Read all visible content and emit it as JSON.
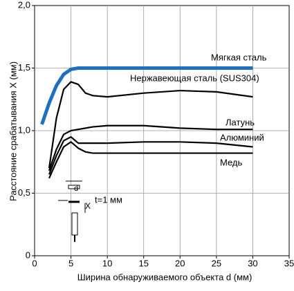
{
  "chart_data": {
    "type": "line",
    "x_label": "Ширина обнаруживаемого объекта d (мм)",
    "y_label": "Расстояние срабатывания X (мм)",
    "x": [
      1,
      2,
      3,
      4,
      5,
      6,
      7,
      8,
      10,
      15,
      20,
      25,
      30
    ],
    "series": [
      {
        "name": "Мягкая сталь",
        "color": "#1f6fc0",
        "values": [
          1.05,
          1.22,
          1.36,
          1.45,
          1.49,
          1.5,
          1.5,
          1.5,
          1.5,
          1.5,
          1.5,
          1.5,
          1.5
        ]
      },
      {
        "name": "Нержавеющая сталь (SUS304)",
        "color": "#000000",
        "values": [
          null,
          0.7,
          1.1,
          1.33,
          1.39,
          1.37,
          1.3,
          1.28,
          1.27,
          1.3,
          1.32,
          1.31,
          1.27
        ]
      },
      {
        "name": "Латунь",
        "color": "#000000",
        "values": [
          null,
          0.68,
          0.85,
          0.97,
          1.0,
          1.01,
          1.02,
          1.03,
          1.04,
          1.04,
          1.02,
          1.01,
          1.01
        ]
      },
      {
        "name": "Алюминий",
        "color": "#000000",
        "values": [
          null,
          0.65,
          0.8,
          0.92,
          0.95,
          0.9,
          0.9,
          0.9,
          0.9,
          0.91,
          0.91,
          0.9,
          0.87
        ]
      },
      {
        "name": "Медь",
        "color": "#000000",
        "values": [
          null,
          0.62,
          0.75,
          0.87,
          0.91,
          0.86,
          0.83,
          0.82,
          0.82,
          0.82,
          0.82,
          0.82,
          0.82
        ]
      }
    ],
    "xlim": [
      0,
      35
    ],
    "xticks": [
      0,
      5,
      10,
      15,
      20,
      25,
      30,
      35
    ],
    "ylim": [
      0,
      2
    ],
    "yticks": [
      0,
      {
        "value": 0.5,
        "label": "0,5"
      },
      {
        "value": 1,
        "label": "1,0"
      },
      {
        "value": 1.5,
        "label": "1,5"
      },
      {
        "value": 2,
        "label": "2,0"
      }
    ],
    "grid": true,
    "annotations": [
      "d",
      "X",
      "t=1 мм"
    ]
  }
}
